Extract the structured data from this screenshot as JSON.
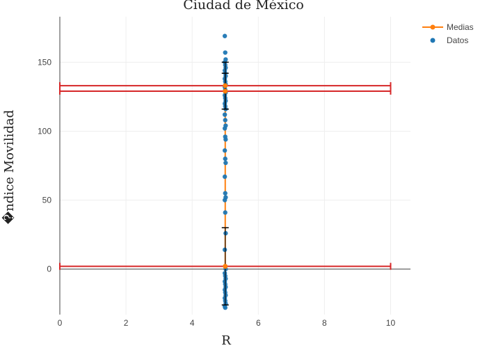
{
  "chart_data": {
    "type": "scatter",
    "title": "Ciudad de México",
    "xlabel": "R",
    "ylabel": "�ndice Movilidad",
    "xlim": [
      0,
      10.6
    ],
    "ylim": [
      -33,
      183
    ],
    "x_ticks": [
      0,
      2,
      4,
      6,
      8,
      10
    ],
    "y_ticks": [
      0,
      50,
      100,
      150
    ],
    "grid": true,
    "legend_position": "top-right",
    "legend": [
      "Medias",
      "Datos"
    ],
    "colors": {
      "medias": "#ff7f0e",
      "datos": "#1f77b4",
      "error_bars": "#000000",
      "hlines": "#d62728"
    },
    "series": [
      {
        "name": "Datos",
        "x": 5,
        "values": [
          169,
          157,
          152,
          150,
          148,
          146,
          144,
          142,
          140,
          138,
          136,
          134,
          132,
          130,
          128,
          126,
          124,
          122,
          120,
          118,
          116,
          112,
          108,
          104,
          102,
          96,
          94,
          86,
          80,
          77,
          67,
          55,
          52,
          50,
          41,
          26,
          14,
          2,
          0,
          -3,
          -5,
          -7,
          -9,
          -11,
          -13,
          -15,
          -17,
          -19,
          -21,
          -23,
          -25,
          -27,
          -28
        ]
      },
      {
        "name": "Medias",
        "points": [
          {
            "x": 5,
            "y": 2,
            "err": 28
          },
          {
            "x": 5,
            "y": 129,
            "err": 13
          },
          {
            "x": 5,
            "y": 133,
            "err": 17
          }
        ]
      }
    ],
    "hlines": [
      {
        "y": 133,
        "x_range": [
          0,
          10
        ]
      },
      {
        "y": 129,
        "x_range": [
          0,
          10
        ]
      },
      {
        "y": 2,
        "x_range": [
          0,
          10
        ]
      }
    ]
  }
}
